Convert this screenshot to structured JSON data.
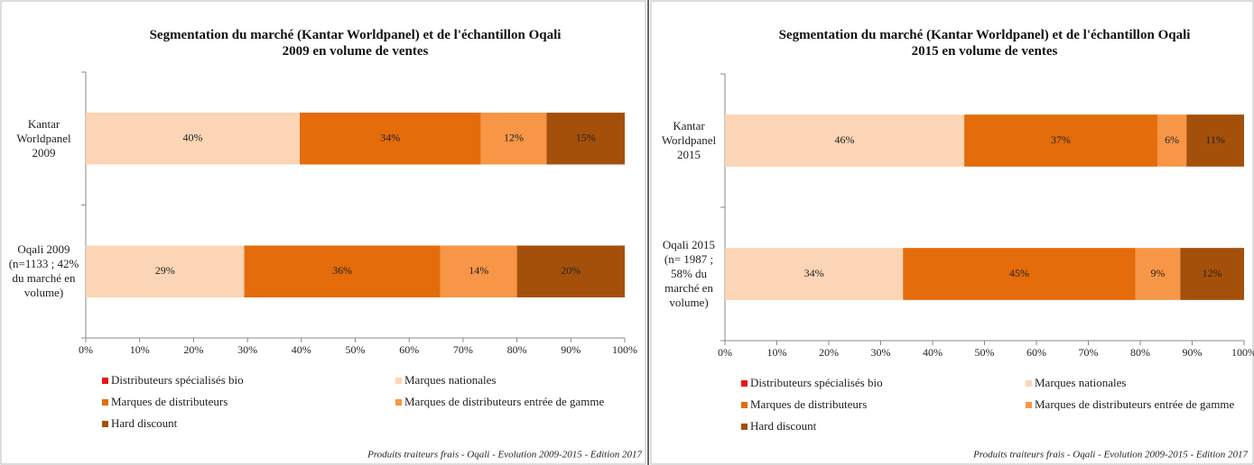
{
  "chart_data": [
    {
      "type": "stacked_barh",
      "title": "Segmentation du marché (Kantar Worldpanel) et de l'échantillon Oqali 2009 en volume de ventes",
      "categories": [
        "Kantar Worldpanel 2009",
        "Oqali 2009 (n=1133 ; 42% du marché en volume)"
      ],
      "series": [
        {
          "name": "Distributeurs spécialisés bio",
          "color": "#e8161b",
          "values": [
            0,
            0
          ],
          "value_labels": [
            "0%",
            null
          ]
        },
        {
          "name": "Marques nationales",
          "color": "#fbd5b5",
          "values": [
            39.7,
            29.4
          ],
          "value_labels": [
            "40%",
            "29%"
          ]
        },
        {
          "name": "Marques de distributeurs",
          "color": "#e46c0a",
          "values": [
            33.6,
            36.4
          ],
          "value_labels": [
            "34%",
            "36%"
          ]
        },
        {
          "name": "Marques de distributeurs entrée de gamme",
          "color": "#f79646",
          "values": [
            12.2,
            14.2
          ],
          "value_labels": [
            "12%",
            "14%"
          ]
        },
        {
          "name": "Hard discount",
          "color": "#a5500a",
          "values": [
            14.5,
            20.0
          ],
          "value_labels": [
            "15%",
            "20%"
          ]
        }
      ],
      "xlim": [
        0,
        100
      ],
      "xticks": [
        {
          "value": 0,
          "label": "0%"
        },
        {
          "value": 10,
          "label": "10%"
        },
        {
          "value": 20,
          "label": "20%"
        },
        {
          "value": 30,
          "label": "30%"
        },
        {
          "value": 40,
          "label": "40%"
        },
        {
          "value": 50,
          "label": "50%"
        },
        {
          "value": 60,
          "label": "60%"
        },
        {
          "value": 70,
          "label": "70%"
        },
        {
          "value": 80,
          "label": "80%"
        },
        {
          "value": 90,
          "label": "90%"
        },
        {
          "value": 100,
          "label": "100%"
        }
      ],
      "legend": "bottom",
      "footnote": "Produits traiteurs frais - Oqali - Evolution 2009-2015 - Edition 2017"
    },
    {
      "type": "stacked_barh",
      "title": "Segmentation du marché (Kantar Worldpanel) et de l'échantillon Oqali 2015 en volume de ventes",
      "categories": [
        "Kantar Worldpanel 2015",
        "Oqali 2015 (n= 1987 ; 58% du marché en volume)"
      ],
      "series": [
        {
          "name": "Distributeurs spécialisés bio",
          "color": "#e8161b",
          "values": [
            0,
            0
          ],
          "value_labels": [
            "0%",
            null
          ]
        },
        {
          "name": "Marques nationales",
          "color": "#fbd5b5",
          "values": [
            46.1,
            34.3
          ],
          "value_labels": [
            "46%",
            "34%"
          ]
        },
        {
          "name": "Marques de distributeurs",
          "color": "#e46c0a",
          "values": [
            37.2,
            44.8
          ],
          "value_labels": [
            "37%",
            "45%"
          ]
        },
        {
          "name": "Marques de distributeurs entrée de gamme",
          "color": "#f79646",
          "values": [
            5.6,
            8.6
          ],
          "value_labels": [
            "6%",
            "9%"
          ]
        },
        {
          "name": "Hard discount",
          "color": "#a5500a",
          "values": [
            11.1,
            12.3
          ],
          "value_labels": [
            "11%",
            "12%"
          ]
        }
      ],
      "xlim": [
        0,
        100
      ],
      "xticks": [
        {
          "value": 0,
          "label": "0%"
        },
        {
          "value": 10,
          "label": "10%"
        },
        {
          "value": 20,
          "label": "20%"
        },
        {
          "value": 30,
          "label": "30%"
        },
        {
          "value": 40,
          "label": "40%"
        },
        {
          "value": 50,
          "label": "50%"
        },
        {
          "value": 60,
          "label": "60%"
        },
        {
          "value": 70,
          "label": "70%"
        },
        {
          "value": 80,
          "label": "80%"
        },
        {
          "value": 90,
          "label": "90%"
        },
        {
          "value": 100,
          "label": "100%"
        }
      ],
      "legend": "bottom",
      "footnote": "Produits traiteurs frais - Oqali - Evolution 2009-2015 - Edition 2017"
    }
  ]
}
